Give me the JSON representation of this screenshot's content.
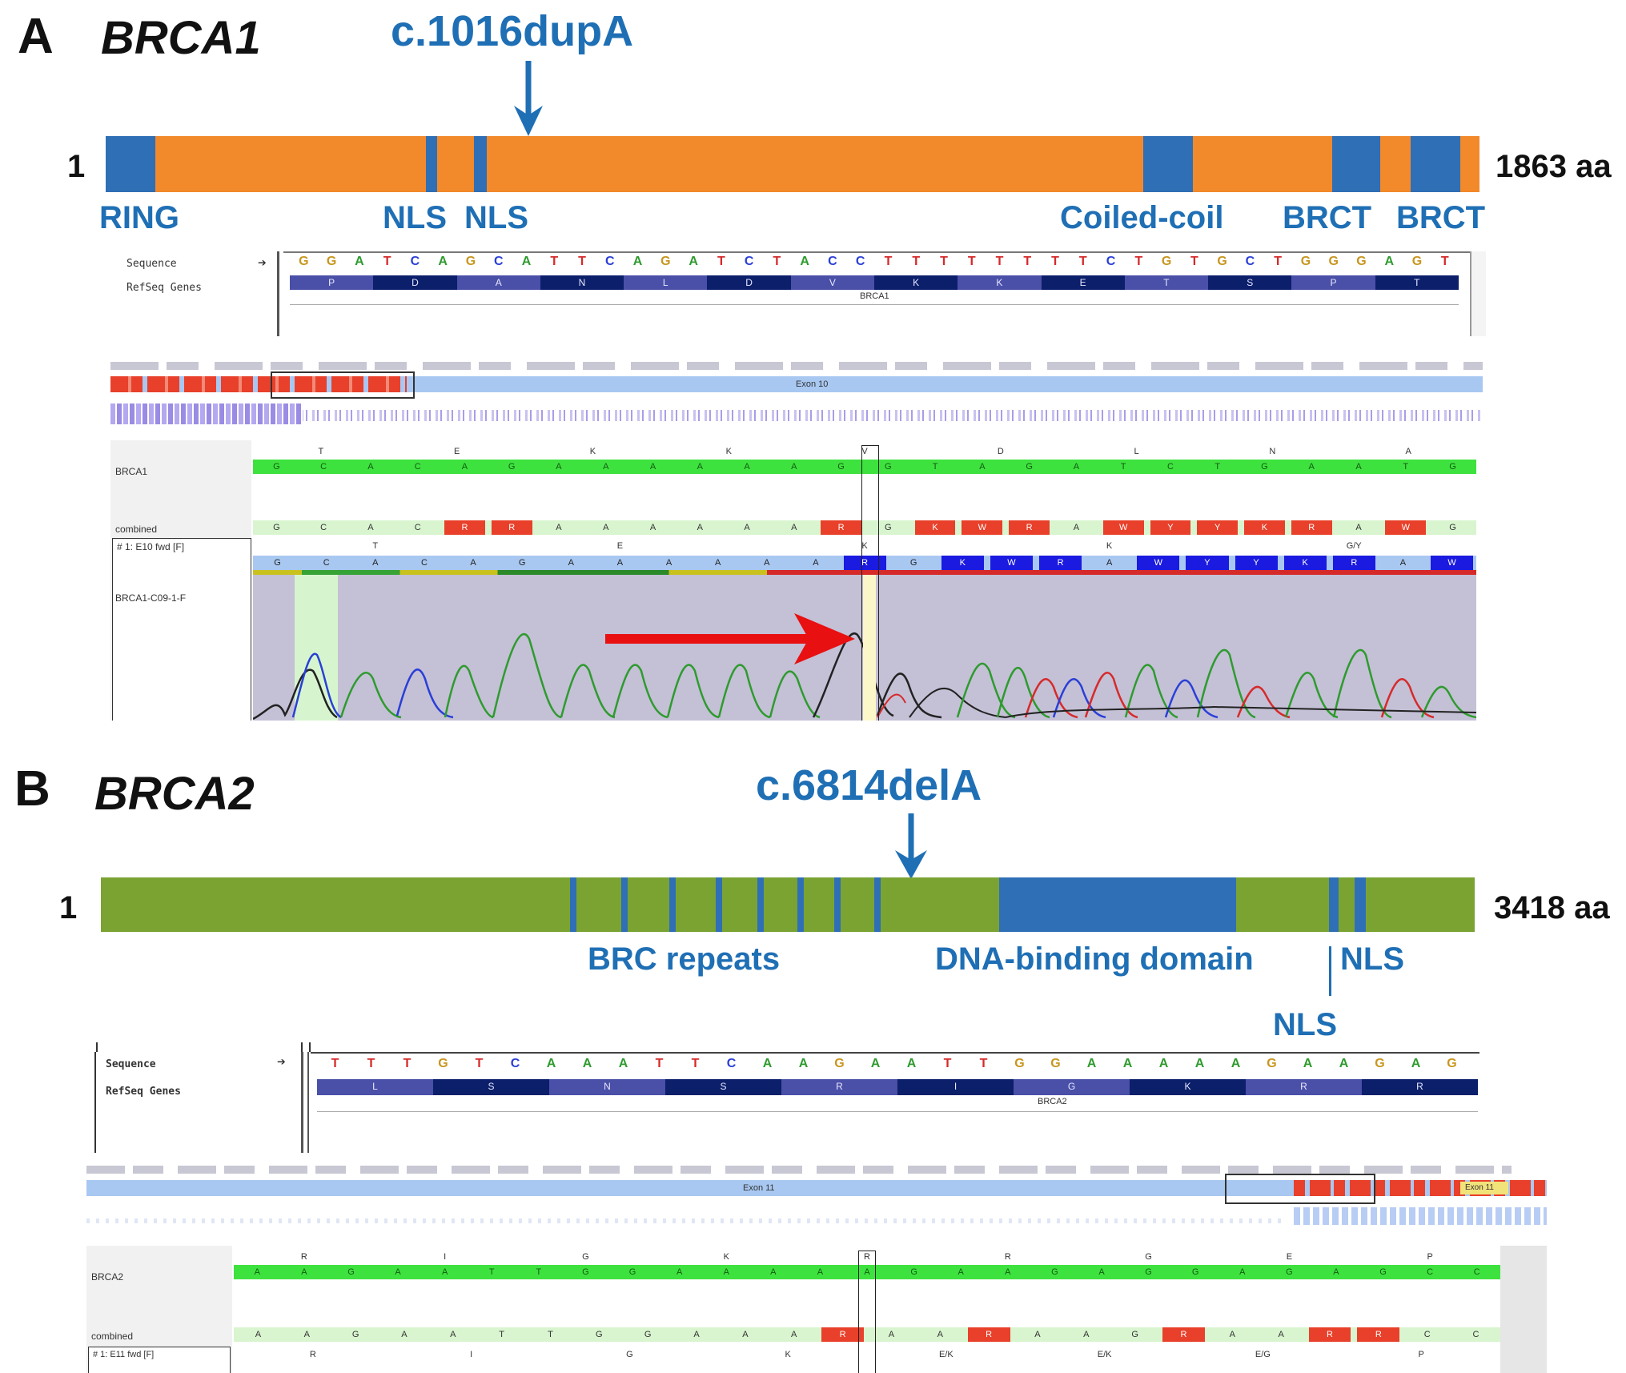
{
  "panel_a": {
    "letter": "A",
    "gene": "BRCA1",
    "mutation": "c.1016dupA",
    "start_label": "1",
    "end_label": "1863 aa",
    "domains": [
      "RING",
      "NLS",
      "NLS",
      "Coiled-coil",
      "BRCT",
      "BRCT"
    ],
    "bar_color": "#f2892b",
    "domain_color": "#2f6fb6",
    "sequence_window": {
      "row_labels": [
        "Sequence",
        "RefSeq Genes"
      ],
      "bases": [
        "G",
        "G",
        "A",
        "T",
        "C",
        "A",
        "G",
        "C",
        "A",
        "T",
        "T",
        "C",
        "A",
        "G",
        "A",
        "T",
        "C",
        "T",
        "A",
        "C",
        "C",
        "T",
        "T",
        "T",
        "T",
        "T",
        "T",
        "T",
        "T",
        "C",
        "T",
        "G",
        "T",
        "G",
        "C",
        "T",
        "G",
        "G",
        "G",
        "A",
        "G",
        "T"
      ],
      "amino_acids": [
        "P",
        "D",
        "A",
        "N",
        "L",
        "D",
        "V",
        "K",
        "K",
        "E",
        "T",
        "S",
        "P",
        "T"
      ],
      "gene_label": "BRCA1"
    },
    "trace_window": {
      "exon_label": "Exon 10",
      "ref_label": "BRCA1",
      "combined_label": "combined",
      "read_label": "# 1: E10 fwd [F]",
      "trace_label": "BRCA1-C09-1-F",
      "ref_aa": [
        "T",
        "E",
        "K",
        "K",
        "V",
        "D",
        "L",
        "N",
        "A"
      ],
      "ref_bases": [
        "G",
        "C",
        "A",
        "C",
        "A",
        "G",
        "A",
        "A",
        "A",
        "A",
        "A",
        "A",
        "G",
        "G",
        "T",
        "A",
        "G",
        "A",
        "T",
        "C",
        "T",
        "G",
        "A",
        "A",
        "T",
        "G"
      ],
      "combined_bases": [
        "G",
        "C",
        "A",
        "C",
        "R",
        "R",
        "A",
        "A",
        "A",
        "A",
        "A",
        "A",
        "R",
        "G",
        "K",
        "W",
        "R",
        "A",
        "W",
        "Y",
        "Y",
        "K",
        "R",
        "A",
        "W",
        "G"
      ],
      "read_bases": [
        "G",
        "C",
        "A",
        "C",
        "A",
        "G",
        "A",
        "A",
        "A",
        "A",
        "A",
        "A",
        "R",
        "G",
        "K",
        "W",
        "R",
        "A",
        "W",
        "Y",
        "Y",
        "K",
        "R",
        "A",
        "W"
      ],
      "read_aa": [
        "T",
        "E",
        "K",
        "K",
        "G/Y"
      ]
    }
  },
  "panel_b": {
    "letter": "B",
    "gene": "BRCA2",
    "mutation": "c.6814delA",
    "start_label": "1",
    "end_label": "3418 aa",
    "domains": [
      "BRC repeats",
      "DNA-binding domain",
      "NLS",
      "NLS"
    ],
    "bar_color": "#7aa332",
    "domain_color": "#2f6fb6",
    "sequence_window": {
      "row_labels": [
        "Sequence",
        "RefSeq Genes"
      ],
      "bases": [
        "T",
        "T",
        "T",
        "G",
        "T",
        "C",
        "A",
        "A",
        "A",
        "T",
        "T",
        "C",
        "A",
        "A",
        "G",
        "A",
        "A",
        "T",
        "T",
        "G",
        "G",
        "A",
        "A",
        "A",
        "A",
        "A",
        "G",
        "A",
        "A",
        "G",
        "A",
        "G"
      ],
      "amino_acids": [
        "L",
        "S",
        "N",
        "S",
        "R",
        "I",
        "G",
        "K",
        "R",
        "R"
      ],
      "gene_label": "BRCA2"
    },
    "trace_window": {
      "exon_label": "Exon 11",
      "exon_label_2": "Exon 11",
      "ref_label": "BRCA2",
      "combined_label": "combined",
      "read_label": "# 1: E11 fwd [F]",
      "ref_aa": [
        "R",
        "I",
        "G",
        "K",
        "R",
        "R",
        "G",
        "E",
        "P"
      ],
      "ref_bases": [
        "A",
        "A",
        "G",
        "A",
        "A",
        "T",
        "T",
        "G",
        "G",
        "A",
        "A",
        "A",
        "A",
        "A",
        "G",
        "A",
        "A",
        "G",
        "A",
        "G",
        "G",
        "A",
        "G",
        "A",
        "G",
        "C",
        "C"
      ],
      "combined_bases": [
        "A",
        "A",
        "G",
        "A",
        "A",
        "T",
        "T",
        "G",
        "G",
        "A",
        "A",
        "A",
        "R",
        "A",
        "A",
        "R",
        "A",
        "A",
        "G",
        "R",
        "A",
        "A",
        "R",
        "R",
        "C",
        "C"
      ],
      "read_aa": [
        "R",
        "I",
        "G",
        "K",
        "E/K",
        "E/K",
        "E/G",
        "P"
      ]
    }
  },
  "colors": {
    "base_A": "#2e9b2e",
    "base_C": "#2a3fd6",
    "base_G": "#c8961e",
    "base_T": "#d62a2a",
    "ref_green": "#3ee23e",
    "combined_light": "#d8f5cf",
    "ambiguous_red": "#e8402a",
    "aa_dark": "#0b1f6b",
    "aa_mid": "#4a4fa8",
    "trace_bg": "#c4c0d6",
    "exon_blue": "#a8c8f2",
    "mutation_arrow": "#1f6fb5",
    "red_arrow": "#e81010"
  }
}
